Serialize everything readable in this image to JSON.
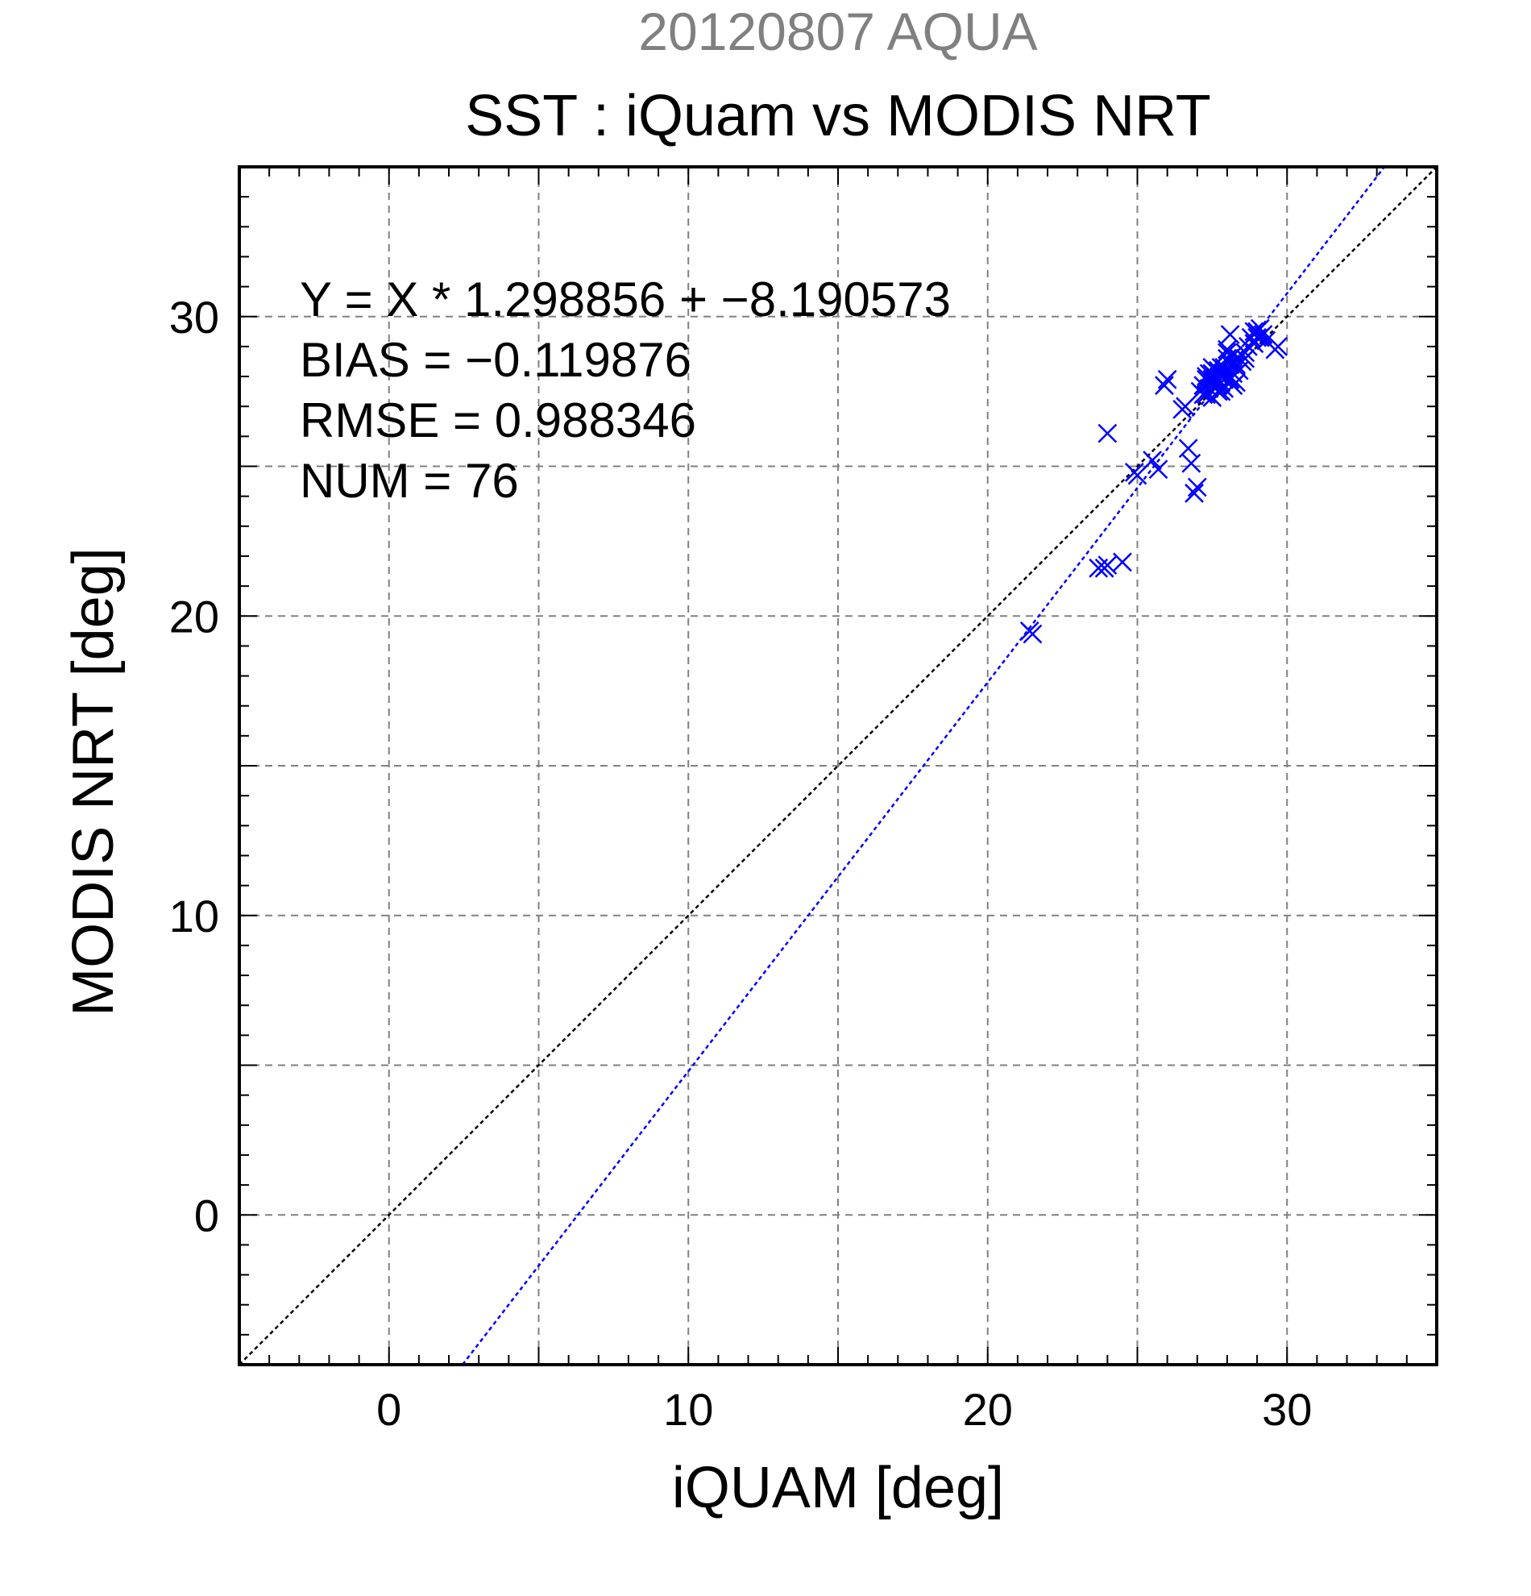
{
  "chart_data": {
    "type": "scatter",
    "suptitle": "20120807 AQUA",
    "title": "SST : iQuam vs MODIS NRT",
    "xlabel": "iQUAM [deg]",
    "ylabel": "MODIS NRT [deg]",
    "xlim": [
      -5,
      35
    ],
    "ylim": [
      -5,
      35
    ],
    "xticks": [
      0,
      10,
      20,
      30
    ],
    "yticks": [
      0,
      10,
      20,
      30
    ],
    "grid": true,
    "colors": {
      "points": "#0000ff",
      "fit": "#0000ff",
      "identity": "#000000",
      "suptitle": "#808080",
      "text": "#000000",
      "grid": "#808080"
    },
    "annotations": [
      "Y = X * 1.298856 + −8.190573",
      "BIAS = −0.119876",
      "RMSE = 0.988346",
      "NUM = 76"
    ],
    "fit_line": {
      "slope": 1.298856,
      "intercept": -8.190573
    },
    "identity_line": {
      "slope": 1,
      "intercept": 0
    },
    "marker": "x",
    "points": [
      [
        21.4,
        19.5
      ],
      [
        21.5,
        19.4
      ],
      [
        23.7,
        21.6
      ],
      [
        23.9,
        21.6
      ],
      [
        24.0,
        21.7
      ],
      [
        24.5,
        21.8
      ],
      [
        24.0,
        26.1
      ],
      [
        24.9,
        24.8
      ],
      [
        25.0,
        24.7
      ],
      [
        25.5,
        25.2
      ],
      [
        25.7,
        24.9
      ],
      [
        25.9,
        27.7
      ],
      [
        26.0,
        27.9
      ],
      [
        26.5,
        26.9
      ],
      [
        26.6,
        27.0
      ],
      [
        26.7,
        25.6
      ],
      [
        26.8,
        25.1
      ],
      [
        26.9,
        24.1
      ],
      [
        27.0,
        24.3
      ],
      [
        27.1,
        27.5
      ],
      [
        27.2,
        27.7
      ],
      [
        27.3,
        28.0
      ],
      [
        27.3,
        27.4
      ],
      [
        27.4,
        27.8
      ],
      [
        27.4,
        27.6
      ],
      [
        27.5,
        28.1
      ],
      [
        27.5,
        27.3
      ],
      [
        27.6,
        27.9
      ],
      [
        27.6,
        28.2
      ],
      [
        27.7,
        27.7
      ],
      [
        27.7,
        27.5
      ],
      [
        27.8,
        28.0
      ],
      [
        27.8,
        27.8
      ],
      [
        27.9,
        28.3
      ],
      [
        27.9,
        27.6
      ],
      [
        28.0,
        28.6
      ],
      [
        28.0,
        28.9
      ],
      [
        28.1,
        29.4
      ],
      [
        28.1,
        27.9
      ],
      [
        28.2,
        28.1
      ],
      [
        28.2,
        27.7
      ],
      [
        28.3,
        28.4
      ],
      [
        28.4,
        28.2
      ],
      [
        28.5,
        28.5
      ],
      [
        28.6,
        28.8
      ],
      [
        28.8,
        29.3
      ],
      [
        28.9,
        29.5
      ],
      [
        29.0,
        29.3
      ],
      [
        29.1,
        29.6
      ],
      [
        29.2,
        29.4
      ],
      [
        29.3,
        29.2
      ],
      [
        29.6,
        28.9
      ],
      [
        29.7,
        29.0
      ],
      [
        27.6,
        28.0
      ],
      [
        27.8,
        28.3
      ],
      [
        28.0,
        28.0
      ],
      [
        27.5,
        27.9
      ],
      [
        27.9,
        28.1
      ],
      [
        28.1,
        28.4
      ],
      [
        27.4,
        28.1
      ],
      [
        27.7,
        28.2
      ],
      [
        28.3,
        27.8
      ],
      [
        28.6,
        28.6
      ],
      [
        28.9,
        29.1
      ],
      [
        29.0,
        29.5
      ],
      [
        27.2,
        27.4
      ],
      [
        27.6,
        27.6
      ],
      [
        28.2,
        28.7
      ],
      [
        28.4,
        28.6
      ],
      [
        27.8,
        27.5
      ],
      [
        28.0,
        28.8
      ],
      [
        27.3,
        27.9
      ],
      [
        27.9,
        27.9
      ],
      [
        28.7,
        29.0
      ],
      [
        29.1,
        29.3
      ],
      [
        27.5,
        28.3
      ]
    ]
  }
}
